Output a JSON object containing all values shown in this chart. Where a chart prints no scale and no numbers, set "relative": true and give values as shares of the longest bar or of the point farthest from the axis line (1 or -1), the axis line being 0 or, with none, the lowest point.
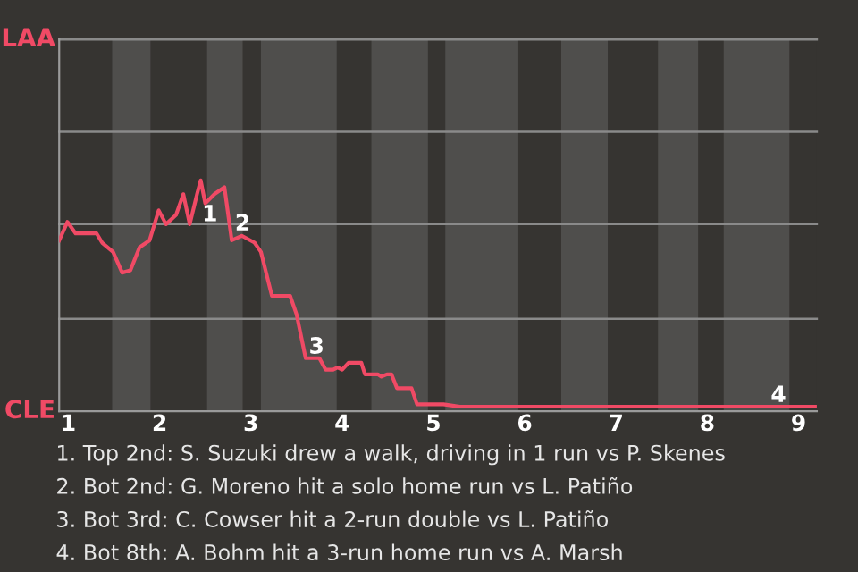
{
  "chart_data": {
    "type": "line",
    "relative": true,
    "x": [
      0.9,
      0.99,
      1.08,
      1.31,
      1.37,
      1.49,
      1.59,
      1.68,
      1.78,
      1.89,
      1.99,
      2.07,
      2.18,
      2.26,
      2.33,
      2.41,
      2.45,
      2.5,
      2.6,
      2.71,
      2.79,
      2.9,
      3.04,
      3.11,
      3.23,
      3.43,
      3.5,
      3.6,
      3.75,
      3.82,
      3.9,
      3.95,
      4.0,
      4.07,
      4.21,
      4.25,
      4.32,
      4.39,
      4.43,
      4.49,
      4.54,
      4.6,
      4.76,
      4.82,
      4.95,
      5.11,
      5.29,
      5.44,
      9.2
    ],
    "series": [
      {
        "color": "#f04a65",
        "values": [
          0.74,
          0.82,
          0.77,
          0.77,
          0.73,
          0.69,
          0.6,
          0.61,
          0.71,
          0.74,
          0.87,
          0.81,
          0.85,
          0.94,
          0.81,
          0.94,
          1,
          0.9,
          0.94,
          0.97,
          0.74,
          0.76,
          0.73,
          0.69,
          0.5,
          0.5,
          0.42,
          0.23,
          0.23,
          0.18,
          0.18,
          0.19,
          0.18,
          0.21,
          0.21,
          0.16,
          0.16,
          0.16,
          0.15,
          0.16,
          0.16,
          0.1,
          0.1,
          0.03,
          0.03,
          0.03,
          0.02,
          0.02,
          0.02
        ]
      }
    ],
    "xlim": [
      0.9,
      9.2
    ],
    "xticks": [
      1,
      2,
      3,
      4,
      5,
      6,
      7,
      8,
      9
    ],
    "ref_lines": [
      {
        "axis": "y",
        "value": 0.4,
        "color": "#8a8a8a"
      },
      {
        "axis": "y",
        "value": 0.81,
        "color": "#8a8a8a"
      },
      {
        "axis": "y",
        "value": 1.21,
        "color": "#8a8a8a"
      },
      {
        "axis": "y",
        "value": 1.61,
        "color": "#8a8a8a"
      }
    ],
    "legend": false,
    "marker": "none",
    "line_style": "solid",
    "bands": [
      {
        "axis": "x",
        "from": 1.48,
        "to": 1.9,
        "color": "#4f4e4c"
      },
      {
        "axis": "x",
        "from": 2.52,
        "to": 2.91,
        "color": "#4f4e4c"
      },
      {
        "axis": "x",
        "from": 3.11,
        "to": 3.94,
        "color": "#4f4e4c"
      },
      {
        "axis": "x",
        "from": 4.32,
        "to": 4.94,
        "color": "#4f4e4c"
      },
      {
        "axis": "x",
        "from": 5.13,
        "to": 5.93,
        "color": "#4f4e4c"
      },
      {
        "axis": "x",
        "from": 6.4,
        "to": 6.91,
        "color": "#4f4e4c"
      },
      {
        "axis": "x",
        "from": 7.46,
        "to": 7.9,
        "color": "#4f4e4c"
      },
      {
        "axis": "x",
        "from": 8.18,
        "to": 8.9,
        "color": "#4f4e4c"
      }
    ],
    "annotations": [
      {
        "text": "1",
        "x": 2.55,
        "y": 0.85
      },
      {
        "text": "2",
        "x": 2.91,
        "y": 0.81
      },
      {
        "text": "3",
        "x": 3.72,
        "y": 0.23
      },
      {
        "text": "4",
        "x": 8.78,
        "y": 0.02
      },
      "LAA",
      "CLE",
      "1. Top 2nd: S. Suzuki drew a walk, driving in 1 run vs P. Skenes",
      "2. Bot 2nd: G. Moreno hit a solo home run vs L. Patiño",
      "3. Bot 3rd: C. Cowser hit a 2-run double vs L. Patiño",
      "4. Bot 8th: A. Bohm hit a 3-run home run vs A. Marsh"
    ]
  }
}
